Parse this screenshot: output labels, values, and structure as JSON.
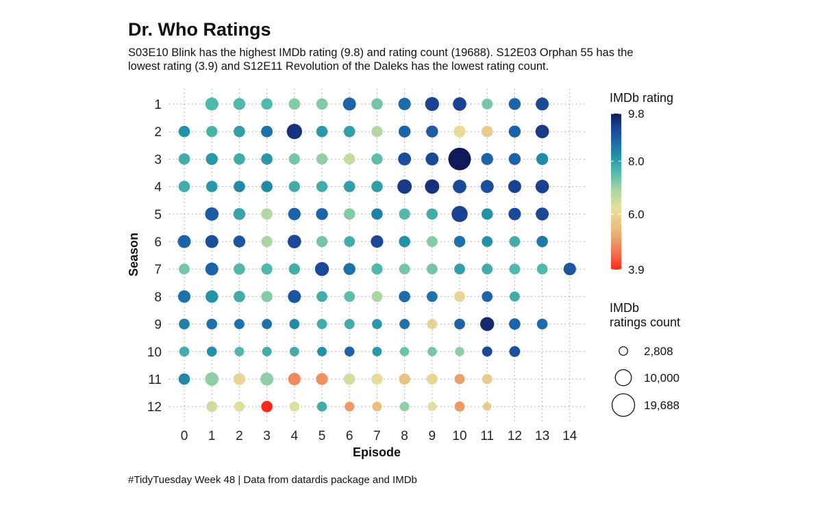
{
  "chart_data": {
    "type": "scatter",
    "title": "Dr. Who Ratings",
    "subtitle": [
      "S03E10 Blink has the highest IMDb rating (9.8) and rating count (19688). S12E03 Orphan 55 has the",
      "lowest rating (3.9) and S12E11 Revolution of the Daleks has the lowest rating count."
    ],
    "caption": "#TidyTuesday Week 48 | Data from datardis package and IMDb",
    "xlabel": "Episode",
    "ylabel": "Season",
    "x_ticks": [
      "0",
      "1",
      "2",
      "3",
      "4",
      "5",
      "6",
      "7",
      "8",
      "9",
      "10",
      "11",
      "12",
      "13",
      "14"
    ],
    "y_ticks": [
      "1",
      "2",
      "3",
      "4",
      "5",
      "6",
      "7",
      "8",
      "9",
      "10",
      "11",
      "12"
    ],
    "xlim": [
      0,
      14
    ],
    "ylim": [
      1,
      12
    ],
    "grid": true,
    "color_scale": {
      "title": "IMDb rating",
      "min": 3.9,
      "max": 9.8,
      "tick_labels": [
        "9.8",
        "8.0",
        "6.0",
        "3.9"
      ],
      "tick_values": [
        9.8,
        8.0,
        6.0,
        3.9
      ],
      "stops": [
        {
          "value": 3.9,
          "color": "#ff2a1a"
        },
        {
          "value": 4.6,
          "color": "#f07a55"
        },
        {
          "value": 5.4,
          "color": "#eab97a"
        },
        {
          "value": 6.2,
          "color": "#e8dfa0"
        },
        {
          "value": 6.9,
          "color": "#a9d6a2"
        },
        {
          "value": 7.6,
          "color": "#50b9ac"
        },
        {
          "value": 8.2,
          "color": "#2391a7"
        },
        {
          "value": 8.8,
          "color": "#1d63aa"
        },
        {
          "value": 9.3,
          "color": "#1a4292"
        },
        {
          "value": 9.8,
          "color": "#10195a"
        }
      ]
    },
    "size_scale": {
      "title": [
        "IMDb",
        "ratings count"
      ],
      "breaks": [
        {
          "value": 2808,
          "label": "2,808"
        },
        {
          "value": 10000,
          "label": "10,000"
        },
        {
          "value": 19688,
          "label": "19,688"
        }
      ],
      "max": 19688
    },
    "series": [
      {
        "season": 1,
        "points": [
          {
            "episode": 1,
            "rating": 7.6,
            "count": 6500
          },
          {
            "episode": 2,
            "rating": 7.6,
            "count": 5500
          },
          {
            "episode": 3,
            "rating": 7.6,
            "count": 5000
          },
          {
            "episode": 4,
            "rating": 7.2,
            "count": 5000
          },
          {
            "episode": 5,
            "rating": 7.2,
            "count": 5000
          },
          {
            "episode": 6,
            "rating": 8.8,
            "count": 6500
          },
          {
            "episode": 7,
            "rating": 7.3,
            "count": 5000
          },
          {
            "episode": 8,
            "rating": 8.7,
            "count": 6000
          },
          {
            "episode": 9,
            "rating": 9.3,
            "count": 7500
          },
          {
            "episode": 10,
            "rating": 9.3,
            "count": 7000
          },
          {
            "episode": 11,
            "rating": 7.3,
            "count": 4500
          },
          {
            "episode": 12,
            "rating": 8.8,
            "count": 5500
          },
          {
            "episode": 13,
            "rating": 9.2,
            "count": 6500
          }
        ]
      },
      {
        "season": 2,
        "points": [
          {
            "episode": 0,
            "rating": 8.2,
            "count": 5000
          },
          {
            "episode": 1,
            "rating": 7.7,
            "count": 4800
          },
          {
            "episode": 2,
            "rating": 8.0,
            "count": 5000
          },
          {
            "episode": 3,
            "rating": 8.6,
            "count": 5200
          },
          {
            "episode": 4,
            "rating": 9.5,
            "count": 9000
          },
          {
            "episode": 5,
            "rating": 8.1,
            "count": 5000
          },
          {
            "episode": 6,
            "rating": 8.0,
            "count": 5000
          },
          {
            "episode": 7,
            "rating": 6.8,
            "count": 4800
          },
          {
            "episode": 8,
            "rating": 8.8,
            "count": 5500
          },
          {
            "episode": 9,
            "rating": 8.9,
            "count": 5500
          },
          {
            "episode": 10,
            "rating": 6.1,
            "count": 5500
          },
          {
            "episode": 11,
            "rating": 5.8,
            "count": 5000
          },
          {
            "episode": 12,
            "rating": 8.8,
            "count": 5500
          },
          {
            "episode": 13,
            "rating": 9.4,
            "count": 7000
          }
        ]
      },
      {
        "season": 3,
        "points": [
          {
            "episode": 0,
            "rating": 7.8,
            "count": 5000
          },
          {
            "episode": 1,
            "rating": 8.1,
            "count": 5500
          },
          {
            "episode": 2,
            "rating": 7.8,
            "count": 5000
          },
          {
            "episode": 3,
            "rating": 8.1,
            "count": 5000
          },
          {
            "episode": 4,
            "rating": 7.3,
            "count": 4800
          },
          {
            "episode": 5,
            "rating": 7.1,
            "count": 4800
          },
          {
            "episode": 6,
            "rating": 6.6,
            "count": 4800
          },
          {
            "episode": 7,
            "rating": 7.5,
            "count": 4800
          },
          {
            "episode": 8,
            "rating": 9.1,
            "count": 6500
          },
          {
            "episode": 9,
            "rating": 9.2,
            "count": 6500
          },
          {
            "episode": 10,
            "rating": 9.8,
            "count": 19688
          },
          {
            "episode": 11,
            "rating": 8.8,
            "count": 5500
          },
          {
            "episode": 12,
            "rating": 8.8,
            "count": 5500
          },
          {
            "episode": 13,
            "rating": 8.3,
            "count": 5500
          }
        ]
      },
      {
        "season": 4,
        "points": [
          {
            "episode": 0,
            "rating": 7.8,
            "count": 5000
          },
          {
            "episode": 1,
            "rating": 8.1,
            "count": 5000
          },
          {
            "episode": 2,
            "rating": 8.3,
            "count": 5000
          },
          {
            "episode": 3,
            "rating": 8.3,
            "count": 5000
          },
          {
            "episode": 4,
            "rating": 7.8,
            "count": 4800
          },
          {
            "episode": 5,
            "rating": 7.8,
            "count": 4800
          },
          {
            "episode": 6,
            "rating": 8.0,
            "count": 5000
          },
          {
            "episode": 7,
            "rating": 8.0,
            "count": 5000
          },
          {
            "episode": 8,
            "rating": 9.4,
            "count": 8000
          },
          {
            "episode": 9,
            "rating": 9.5,
            "count": 8000
          },
          {
            "episode": 10,
            "rating": 9.2,
            "count": 7000
          },
          {
            "episode": 11,
            "rating": 9.1,
            "count": 6500
          },
          {
            "episode": 12,
            "rating": 9.3,
            "count": 6500
          },
          {
            "episode": 13,
            "rating": 9.3,
            "count": 7000
          }
        ]
      },
      {
        "season": 5,
        "points": [
          {
            "episode": 1,
            "rating": 8.9,
            "count": 7000
          },
          {
            "episode": 2,
            "rating": 7.9,
            "count": 5500
          },
          {
            "episode": 3,
            "rating": 6.8,
            "count": 5000
          },
          {
            "episode": 4,
            "rating": 8.8,
            "count": 6000
          },
          {
            "episode": 5,
            "rating": 8.8,
            "count": 5500
          },
          {
            "episode": 6,
            "rating": 7.2,
            "count": 5000
          },
          {
            "episode": 7,
            "rating": 8.4,
            "count": 5000
          },
          {
            "episode": 8,
            "rating": 7.6,
            "count": 4800
          },
          {
            "episode": 9,
            "rating": 7.8,
            "count": 4800
          },
          {
            "episode": 10,
            "rating": 9.3,
            "count": 10000
          },
          {
            "episode": 11,
            "rating": 8.2,
            "count": 5000
          },
          {
            "episode": 12,
            "rating": 9.2,
            "count": 6000
          },
          {
            "episode": 13,
            "rating": 9.2,
            "count": 6500
          }
        ]
      },
      {
        "season": 6,
        "points": [
          {
            "episode": 0,
            "rating": 8.8,
            "count": 6500
          },
          {
            "episode": 1,
            "rating": 9.1,
            "count": 6500
          },
          {
            "episode": 2,
            "rating": 9.0,
            "count": 5500
          },
          {
            "episode": 3,
            "rating": 6.9,
            "count": 4800
          },
          {
            "episode": 4,
            "rating": 9.2,
            "count": 7000
          },
          {
            "episode": 5,
            "rating": 7.3,
            "count": 4800
          },
          {
            "episode": 6,
            "rating": 7.8,
            "count": 4500
          },
          {
            "episode": 7,
            "rating": 9.2,
            "count": 6000
          },
          {
            "episode": 8,
            "rating": 8.2,
            "count": 5000
          },
          {
            "episode": 9,
            "rating": 7.2,
            "count": 4500
          },
          {
            "episode": 10,
            "rating": 8.6,
            "count": 5000
          },
          {
            "episode": 11,
            "rating": 8.2,
            "count": 4500
          },
          {
            "episode": 12,
            "rating": 7.8,
            "count": 4500
          },
          {
            "episode": 13,
            "rating": 8.5,
            "count": 5000
          }
        ]
      },
      {
        "season": 7,
        "points": [
          {
            "episode": 0,
            "rating": 7.3,
            "count": 4500
          },
          {
            "episode": 1,
            "rating": 8.8,
            "count": 6500
          },
          {
            "episode": 2,
            "rating": 7.6,
            "count": 5000
          },
          {
            "episode": 3,
            "rating": 7.6,
            "count": 4800
          },
          {
            "episode": 4,
            "rating": 7.8,
            "count": 4800
          },
          {
            "episode": 5,
            "rating": 9.2,
            "count": 7500
          },
          {
            "episode": 6,
            "rating": 8.6,
            "count": 5500
          },
          {
            "episode": 7,
            "rating": 7.6,
            "count": 4800
          },
          {
            "episode": 8,
            "rating": 7.3,
            "count": 4500
          },
          {
            "episode": 9,
            "rating": 7.3,
            "count": 4500
          },
          {
            "episode": 10,
            "rating": 8.0,
            "count": 4500
          },
          {
            "episode": 11,
            "rating": 7.8,
            "count": 4500
          },
          {
            "episode": 12,
            "rating": 7.6,
            "count": 4500
          },
          {
            "episode": 13,
            "rating": 7.6,
            "count": 4500
          },
          {
            "episode": 14,
            "rating": 9.0,
            "count": 6000
          }
        ]
      },
      {
        "season": 8,
        "points": [
          {
            "episode": 0,
            "rating": 8.6,
            "count": 6000
          },
          {
            "episode": 1,
            "rating": 8.2,
            "count": 6000
          },
          {
            "episode": 2,
            "rating": 7.8,
            "count": 5000
          },
          {
            "episode": 3,
            "rating": 7.2,
            "count": 4800
          },
          {
            "episode": 4,
            "rating": 9.0,
            "count": 6500
          },
          {
            "episode": 5,
            "rating": 7.8,
            "count": 4500
          },
          {
            "episode": 6,
            "rating": 7.5,
            "count": 4500
          },
          {
            "episode": 7,
            "rating": 6.9,
            "count": 4500
          },
          {
            "episode": 8,
            "rating": 8.7,
            "count": 5000
          },
          {
            "episode": 9,
            "rating": 8.6,
            "count": 4500
          },
          {
            "episode": 10,
            "rating": 6.0,
            "count": 4500
          },
          {
            "episode": 11,
            "rating": 8.8,
            "count": 4500
          },
          {
            "episode": 12,
            "rating": 7.8,
            "count": 4000
          }
        ]
      },
      {
        "season": 9,
        "points": [
          {
            "episode": 0,
            "rating": 8.4,
            "count": 4500
          },
          {
            "episode": 1,
            "rating": 8.6,
            "count": 4500
          },
          {
            "episode": 2,
            "rating": 8.6,
            "count": 4000
          },
          {
            "episode": 3,
            "rating": 8.6,
            "count": 4000
          },
          {
            "episode": 4,
            "rating": 8.3,
            "count": 4000
          },
          {
            "episode": 5,
            "rating": 7.8,
            "count": 4000
          },
          {
            "episode": 6,
            "rating": 7.8,
            "count": 4000
          },
          {
            "episode": 7,
            "rating": 8.1,
            "count": 3900
          },
          {
            "episode": 8,
            "rating": 8.6,
            "count": 4000
          },
          {
            "episode": 9,
            "rating": 5.9,
            "count": 4000
          },
          {
            "episode": 10,
            "rating": 8.8,
            "count": 4500
          },
          {
            "episode": 11,
            "rating": 9.6,
            "count": 7500
          },
          {
            "episode": 12,
            "rating": 8.8,
            "count": 5000
          },
          {
            "episode": 13,
            "rating": 8.7,
            "count": 4500
          }
        ]
      },
      {
        "season": 10,
        "points": [
          {
            "episode": 0,
            "rating": 7.8,
            "count": 3900
          },
          {
            "episode": 1,
            "rating": 8.2,
            "count": 3900
          },
          {
            "episode": 2,
            "rating": 7.6,
            "count": 3500
          },
          {
            "episode": 3,
            "rating": 7.8,
            "count": 3500
          },
          {
            "episode": 4,
            "rating": 7.8,
            "count": 3500
          },
          {
            "episode": 5,
            "rating": 8.2,
            "count": 3500
          },
          {
            "episode": 6,
            "rating": 8.8,
            "count": 3800
          },
          {
            "episode": 7,
            "rating": 8.1,
            "count": 3500
          },
          {
            "episode": 8,
            "rating": 7.4,
            "count": 3300
          },
          {
            "episode": 9,
            "rating": 7.3,
            "count": 3300
          },
          {
            "episode": 10,
            "rating": 7.1,
            "count": 3300
          },
          {
            "episode": 11,
            "rating": 9.2,
            "count": 4000
          },
          {
            "episode": 12,
            "rating": 9.1,
            "count": 4500
          }
        ]
      },
      {
        "season": 11,
        "points": [
          {
            "episode": 0,
            "rating": 8.3,
            "count": 5000
          },
          {
            "episode": 1,
            "rating": 7.1,
            "count": 7000
          },
          {
            "episode": 2,
            "rating": 6.0,
            "count": 5500
          },
          {
            "episode": 3,
            "rating": 7.1,
            "count": 6500
          },
          {
            "episode": 4,
            "rating": 4.8,
            "count": 6000
          },
          {
            "episode": 5,
            "rating": 4.9,
            "count": 5500
          },
          {
            "episode": 6,
            "rating": 6.4,
            "count": 5000
          },
          {
            "episode": 7,
            "rating": 6.1,
            "count": 4800
          },
          {
            "episode": 8,
            "rating": 5.6,
            "count": 4800
          },
          {
            "episode": 9,
            "rating": 6.0,
            "count": 4600
          },
          {
            "episode": 10,
            "rating": 5.1,
            "count": 4000
          },
          {
            "episode": 11,
            "rating": 5.8,
            "count": 4000
          }
        ]
      },
      {
        "season": 12,
        "points": [
          {
            "episode": 1,
            "rating": 6.5,
            "count": 4500
          },
          {
            "episode": 2,
            "rating": 6.3,
            "count": 4000
          },
          {
            "episode": 3,
            "rating": 3.9,
            "count": 5000
          },
          {
            "episode": 4,
            "rating": 6.3,
            "count": 3800
          },
          {
            "episode": 5,
            "rating": 7.8,
            "count": 3800
          },
          {
            "episode": 6,
            "rating": 5.0,
            "count": 3600
          },
          {
            "episode": 7,
            "rating": 5.5,
            "count": 3500
          },
          {
            "episode": 8,
            "rating": 7.1,
            "count": 3500
          },
          {
            "episode": 9,
            "rating": 6.3,
            "count": 3200
          },
          {
            "episode": 10,
            "rating": 5.0,
            "count": 4000
          },
          {
            "episode": 11,
            "rating": 5.8,
            "count": 2808
          }
        ]
      }
    ]
  }
}
